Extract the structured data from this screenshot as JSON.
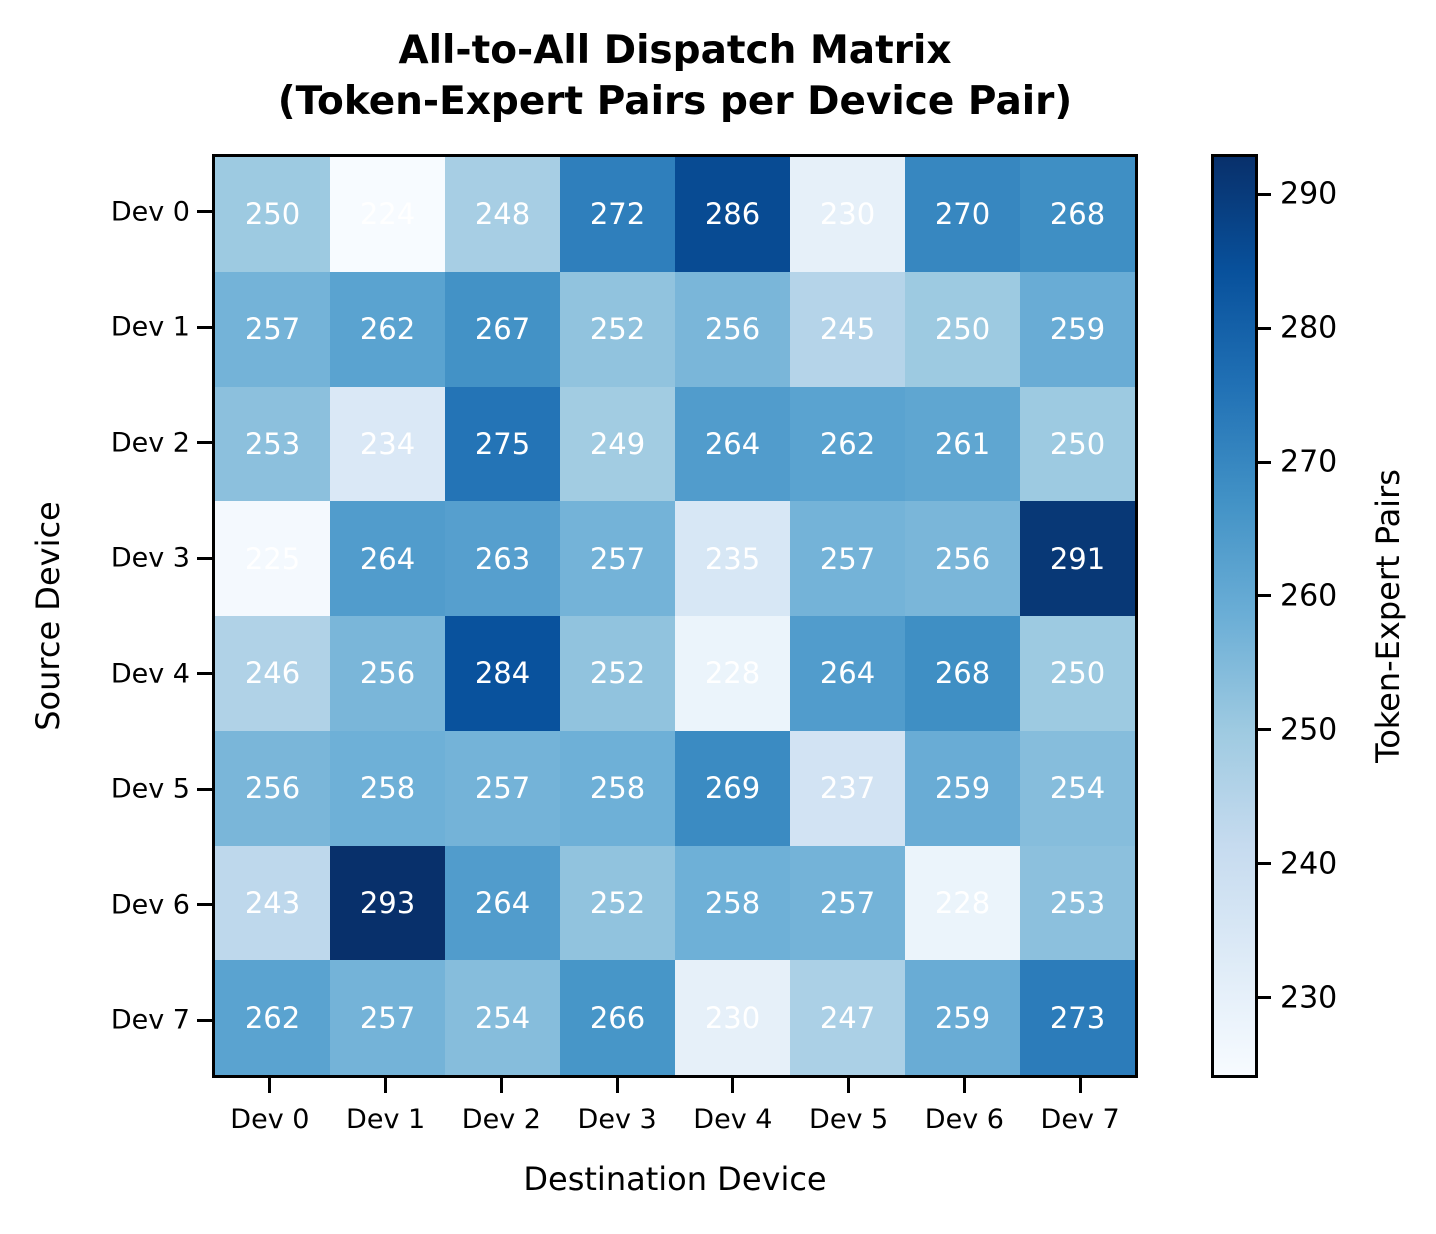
{
  "title": {
    "line1": "All-to-All Dispatch Matrix",
    "line2": "(Token-Expert Pairs per Device Pair)"
  },
  "chart_data": {
    "type": "heatmap",
    "title": "All-to-All Dispatch Matrix (Token-Expert Pairs per Device Pair)",
    "xlabel": "Destination Device",
    "ylabel": "Source Device",
    "colorbar_label": "Token-Expert Pairs",
    "x_categories": [
      "Dev 0",
      "Dev 1",
      "Dev 2",
      "Dev 3",
      "Dev 4",
      "Dev 5",
      "Dev 6",
      "Dev 7"
    ],
    "y_categories": [
      "Dev 0",
      "Dev 1",
      "Dev 2",
      "Dev 3",
      "Dev 4",
      "Dev 5",
      "Dev 6",
      "Dev 7"
    ],
    "matrix": [
      [
        250,
        224,
        248,
        272,
        286,
        230,
        270,
        268
      ],
      [
        257,
        262,
        267,
        252,
        256,
        245,
        250,
        259
      ],
      [
        253,
        234,
        275,
        249,
        264,
        262,
        261,
        250
      ],
      [
        225,
        264,
        263,
        257,
        235,
        257,
        256,
        291
      ],
      [
        246,
        256,
        284,
        252,
        228,
        264,
        268,
        250
      ],
      [
        256,
        258,
        257,
        258,
        269,
        237,
        259,
        254
      ],
      [
        243,
        293,
        264,
        252,
        258,
        257,
        228,
        253
      ],
      [
        262,
        257,
        254,
        266,
        230,
        247,
        259,
        273
      ]
    ],
    "colormap": "Blues",
    "zlim": [
      224,
      293
    ],
    "colorbar_ticks": [
      230,
      240,
      250,
      260,
      270,
      280,
      290
    ],
    "value_text_color": "#ffffff",
    "legend_position": "right-colorbar",
    "grid": false
  }
}
